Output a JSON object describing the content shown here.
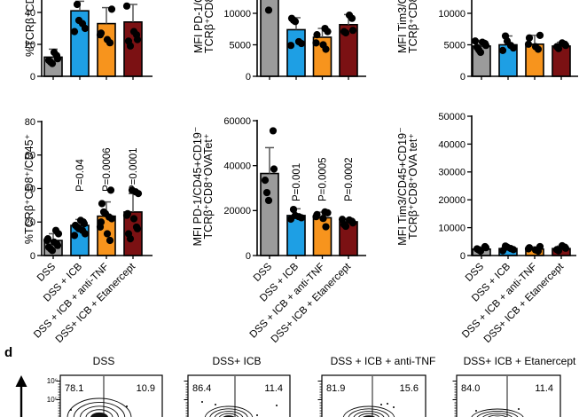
{
  "colors": {
    "bar_gray": "#9b9b9b",
    "bar_blue": "#1e9fe4",
    "bar_orange": "#f7941d",
    "bar_dark_red": "#7b1113",
    "bar_outline": "#000000",
    "error_bar": "#565656",
    "point": "#000000",
    "axis": "#000000",
    "gate_line": "#8a8a8a"
  },
  "categories": [
    "DSS",
    "DSS + ICB",
    "DSS + ICB + anti-TNF",
    "DSS+ ICB + Etanercept"
  ],
  "chart_data": [
    {
      "id": "pct-tcrb-cd8-top",
      "type": "bar",
      "ylabel_lines": [
        "%TCRβ⁺CD8"
      ],
      "ylabel_clipped_top": true,
      "yticks": [
        0,
        20,
        40
      ],
      "ylim": [
        0,
        48
      ],
      "values": [
        12,
        41,
        33,
        34
      ],
      "errors": [
        17,
        47,
        43,
        45
      ],
      "points": [
        [
          8,
          9,
          10,
          11,
          13,
          15
        ],
        [
          28,
          30,
          33,
          35,
          45
        ],
        [
          21,
          23,
          26,
          27,
          42
        ],
        [
          19,
          22,
          23,
          26,
          28,
          44
        ]
      ],
      "p_values": null
    },
    {
      "id": "mfi-pd1-cd8-top",
      "type": "bar",
      "ylabel_lines": [
        "MFI PD-1/CD",
        "TCRβ⁺CD8⁺"
      ],
      "ylabel_clipped_top": true,
      "yticks": [
        0,
        5000,
        10000
      ],
      "ylim": [
        0,
        13600
      ],
      "values": [
        13600,
        7400,
        6200,
        8200
      ],
      "errors": [
        null,
        9300,
        7600,
        9800
      ],
      "points": [
        [
          10500
        ],
        [
          4900,
          5200,
          5500,
          8700,
          8900,
          9200
        ],
        [
          4300,
          5000,
          5300,
          6600,
          7100,
          7600
        ],
        [
          6900,
          7100,
          7300,
          9200,
          9700
        ]
      ],
      "p_values": null
    },
    {
      "id": "mfi-tim3-cd8-top",
      "type": "bar",
      "ylabel_lines": [
        "MFI Tim3/CD",
        "TCRβ⁺CD8⁺"
      ],
      "ylabel_clipped_top": true,
      "yticks": [
        0,
        5000,
        10000
      ],
      "ylim": [
        0,
        13600
      ],
      "values": [
        4800,
        5000,
        5100,
        4800
      ],
      "errors": [
        5700,
        6400,
        6500,
        5400
      ],
      "points": [
        [
          3800,
          4200,
          4600,
          4900,
          5200,
          5400,
          5600
        ],
        [
          4100,
          4500,
          4900,
          5600,
          6400
        ],
        [
          4300,
          4700,
          5100,
          6100,
          6500
        ],
        [
          4400,
          4700,
          4900,
          5100,
          5300
        ]
      ],
      "p_values": null
    },
    {
      "id": "pct-tcrb-cd8-cd45",
      "type": "bar",
      "ylabel_lines": [
        "%TCRβ⁺CD8⁺/CD45⁺"
      ],
      "ylabel_clipped_top": false,
      "yticks": [
        0,
        20,
        40,
        60,
        80
      ],
      "ylim": [
        0,
        80
      ],
      "values": [
        9,
        18,
        23.5,
        26
      ],
      "errors": [
        13,
        21.5,
        32,
        37
      ],
      "points": [
        [
          3,
          4,
          5,
          6,
          7,
          8,
          9,
          10,
          13,
          15
        ],
        [
          12,
          13,
          15,
          16,
          17,
          18,
          19,
          20,
          21
        ],
        [
          9,
          13,
          17,
          20,
          22,
          23,
          25,
          26,
          31,
          39
        ],
        [
          10,
          13,
          16,
          17,
          22,
          24,
          25,
          37,
          38,
          39
        ]
      ],
      "p_values": [
        null,
        "P=0.04",
        "P=0.0006",
        "P=0.0001"
      ]
    },
    {
      "id": "mfi-pd1-ovatet",
      "type": "bar",
      "ylabel_lines": [
        "MFI PD-1/CD45+CD19⁻",
        "TCRβ⁺CD8⁺OVATet⁺"
      ],
      "ylabel_clipped_top": false,
      "yticks": [
        0,
        20000,
        40000,
        60000
      ],
      "ylim": [
        0,
        60000
      ],
      "values": [
        36500,
        17800,
        16800,
        15000
      ],
      "errors": [
        48000,
        20800,
        19300,
        16500
      ],
      "points": [
        [
          24500,
          28000,
          33500,
          38500,
          55500
        ],
        [
          16200,
          16800,
          17300,
          17800,
          20500
        ],
        [
          12800,
          16500,
          17300,
          18200,
          19000,
          19400
        ],
        [
          13000,
          13800,
          14500,
          15200,
          15800,
          16100
        ]
      ],
      "p_values": [
        null,
        "P=0.001",
        "P=0.0005",
        "P=0.0002"
      ]
    },
    {
      "id": "mfi-tim3-ovatet",
      "type": "bar",
      "ylabel_lines": [
        "MFI Tim3/CD45+CD19⁻",
        "TCRβ⁺CD8⁺OVA tet⁺"
      ],
      "ylabel_clipped_top": false,
      "yticks": [
        0,
        10000,
        20000,
        30000,
        40000,
        50000
      ],
      "ylim": [
        0,
        50000
      ],
      "values": [
        2300,
        2500,
        2300,
        2500
      ],
      "errors": [
        3100,
        3400,
        3100,
        3400
      ],
      "points": [
        [
          1600,
          2000,
          2400,
          2800,
          3200
        ],
        [
          1700,
          2100,
          2500,
          3000,
          3400
        ],
        [
          1600,
          2000,
          2400,
          2800,
          3200
        ],
        [
          1700,
          2100,
          2600,
          3000,
          3500
        ]
      ],
      "p_values": null
    }
  ],
  "flow_panel": {
    "label": "d",
    "y_axis_ticks": [
      "10⁶",
      "10⁵"
    ],
    "plots": [
      {
        "title": "DSS",
        "quadrant_left": "78.1",
        "quadrant_right": "10.9"
      },
      {
        "title": "DSS+ ICB",
        "quadrant_left": "86.4",
        "quadrant_right": "11.4"
      },
      {
        "title": "DSS + ICB + anti-TNF",
        "quadrant_left": "81.9",
        "quadrant_right": "15.6"
      },
      {
        "title": "DSS+ ICB + Etanercept",
        "quadrant_left": "84.0",
        "quadrant_right": "11.4"
      }
    ]
  }
}
